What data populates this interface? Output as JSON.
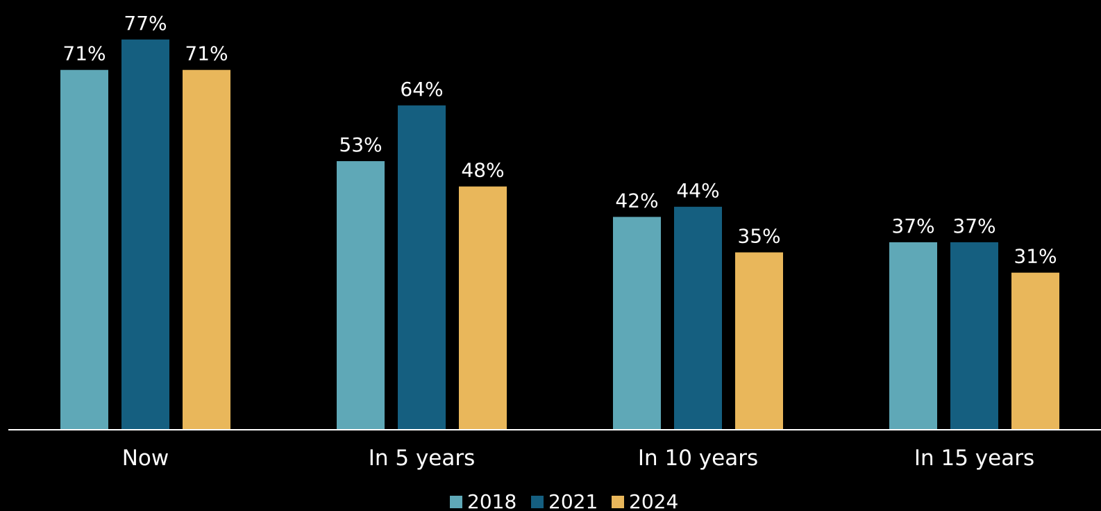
{
  "chart_data": {
    "type": "bar",
    "title": "",
    "xlabel": "",
    "ylabel": "",
    "ylim": [
      0,
      100
    ],
    "grid": false,
    "legend_position": "bottom",
    "categories": [
      "Now",
      "In 5 years",
      "In 10 years",
      "In 15 years"
    ],
    "series": [
      {
        "name": "2018",
        "color": "#5fa8b7",
        "values": [
          71,
          53,
          42,
          37
        ],
        "labels": [
          "71%",
          "53%",
          "42%",
          "37%"
        ]
      },
      {
        "name": "2021",
        "color": "#155f80",
        "values": [
          77,
          64,
          44,
          37
        ],
        "labels": [
          "77%",
          "64%",
          "44%",
          "37%"
        ]
      },
      {
        "name": "2024",
        "color": "#e9b75b",
        "values": [
          71,
          48,
          35,
          31
        ],
        "labels": [
          "71%",
          "48%",
          "35%",
          "31%"
        ]
      }
    ]
  },
  "colors": {
    "background": "#000000",
    "axis": "#ffffff",
    "text": "#ffffff"
  }
}
